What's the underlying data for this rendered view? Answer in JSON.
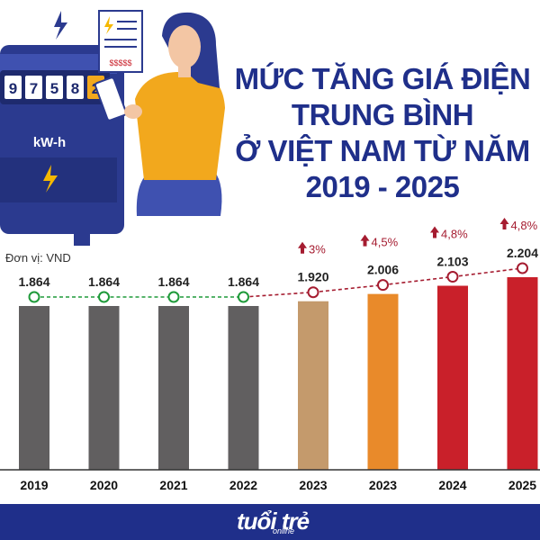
{
  "title_lines": [
    "MỨC TĂNG GIÁ ĐIỆN",
    "TRUNG BÌNH",
    "Ở VIỆT NAM TỪ NĂM",
    "2019 - 2025"
  ],
  "unit_label": "Đơn vị: VND",
  "meter_digits": [
    "9",
    "7",
    "5",
    "8",
    "2"
  ],
  "meter_label": "kW-h",
  "receipt_text": "$$$$$",
  "brand": {
    "name": "tuổi trẻ",
    "sub": "online"
  },
  "colors": {
    "title": "#1f2f8a",
    "footer": "#1f2f8a",
    "gray": "#615f60",
    "tan": "#c49a6c",
    "orange": "#e98a2a",
    "red": "#c9202a",
    "green": "#1f9a3a",
    "arrow": "#a51c30"
  },
  "chart_data": {
    "type": "bar",
    "categories": [
      "2019",
      "2020",
      "2021",
      "2022",
      "2023",
      "2023",
      "2024",
      "2025"
    ],
    "values": [
      1864,
      1864,
      1864,
      1864,
      1920,
      2006,
      2103,
      2204
    ],
    "value_labels": [
      "1.864",
      "1.864",
      "1.864",
      "1.864",
      "1.920",
      "2.006",
      "2.103",
      "2.204"
    ],
    "increase_labels": [
      "",
      "",
      "",
      "",
      "3%",
      "4,5%",
      "4,8%",
      "4,8%"
    ],
    "bar_colors": [
      "#615f60",
      "#615f60",
      "#615f60",
      "#615f60",
      "#c49a6c",
      "#e98a2a",
      "#c9202a",
      "#c9202a"
    ],
    "title": "MỨC TĂNG GIÁ ĐIỆN TRUNG BÌNH Ở VIỆT NAM TỪ NĂM 2019 - 2025",
    "ylabel": "Đơn vị: VND"
  }
}
